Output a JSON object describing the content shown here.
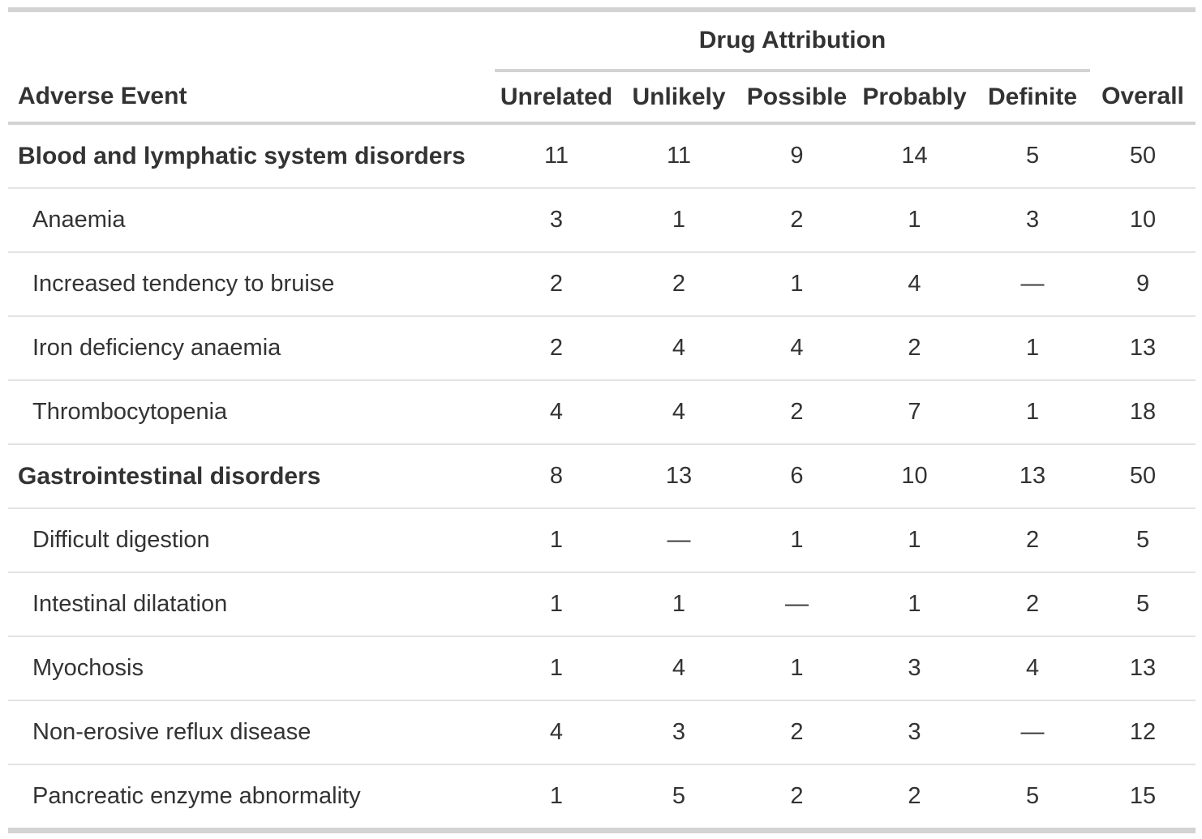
{
  "table": {
    "spanner_label": "Drug Attribution",
    "columns": [
      "Adverse Event",
      "Unrelated",
      "Unlikely",
      "Possible",
      "Probably",
      "Definite",
      "Overall"
    ],
    "missing_symbol": "—",
    "rows": [
      {
        "label": "Blood and lymphatic system disorders",
        "group": true,
        "values": [
          "11",
          "11",
          "9",
          "14",
          "5",
          "50"
        ]
      },
      {
        "label": "Anaemia",
        "group": false,
        "values": [
          "3",
          "1",
          "2",
          "1",
          "3",
          "10"
        ]
      },
      {
        "label": "Increased tendency to bruise",
        "group": false,
        "values": [
          "2",
          "2",
          "1",
          "4",
          "—",
          "9"
        ]
      },
      {
        "label": "Iron deficiency anaemia",
        "group": false,
        "values": [
          "2",
          "4",
          "4",
          "2",
          "1",
          "13"
        ]
      },
      {
        "label": "Thrombocytopenia",
        "group": false,
        "values": [
          "4",
          "4",
          "2",
          "7",
          "1",
          "18"
        ]
      },
      {
        "label": "Gastrointestinal disorders",
        "group": true,
        "values": [
          "8",
          "13",
          "6",
          "10",
          "13",
          "50"
        ]
      },
      {
        "label": "Difficult digestion",
        "group": false,
        "values": [
          "1",
          "—",
          "1",
          "1",
          "2",
          "5"
        ]
      },
      {
        "label": "Intestinal dilatation",
        "group": false,
        "values": [
          "1",
          "1",
          "—",
          "1",
          "2",
          "5"
        ]
      },
      {
        "label": "Myochosis",
        "group": false,
        "values": [
          "1",
          "4",
          "1",
          "3",
          "4",
          "13"
        ]
      },
      {
        "label": "Non-erosive reflux disease",
        "group": false,
        "values": [
          "4",
          "3",
          "2",
          "3",
          "—",
          "12"
        ]
      },
      {
        "label": "Pancreatic enzyme abnormality",
        "group": false,
        "values": [
          "1",
          "5",
          "2",
          "2",
          "5",
          "15"
        ]
      }
    ],
    "colors": {
      "border": "#d3d3d3",
      "row_divider": "#e3e3e3",
      "text": "#333333",
      "background": "#ffffff"
    }
  }
}
